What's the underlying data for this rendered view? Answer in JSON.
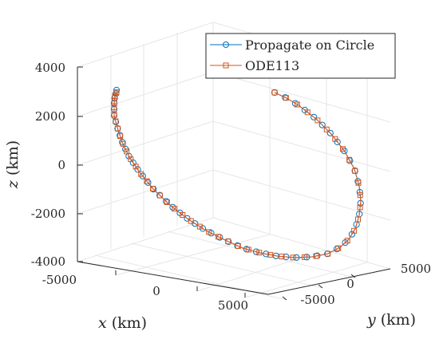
{
  "chart_data": {
    "type": "scatter",
    "projection": "3d",
    "xlabel_var": "x",
    "xlabel_unit": "(km)",
    "ylabel_var": "y",
    "ylabel_unit": "(km)",
    "zlabel_var": "z",
    "zlabel_unit": "(km)",
    "xticks": [
      "-5000",
      "0",
      "5000"
    ],
    "yticks": [
      "-5000",
      "0",
      "5000"
    ],
    "zticks": [
      "4000",
      "2000",
      "0",
      "-2000",
      "-4000"
    ],
    "grid": true,
    "legend_position": "top-right",
    "series": [
      {
        "name": "Propagate on Circle",
        "color": "#0072BD",
        "marker": "circle",
        "line": true
      },
      {
        "name": "ODE113",
        "color": "#D95319",
        "marker": "square",
        "line": true
      }
    ]
  }
}
